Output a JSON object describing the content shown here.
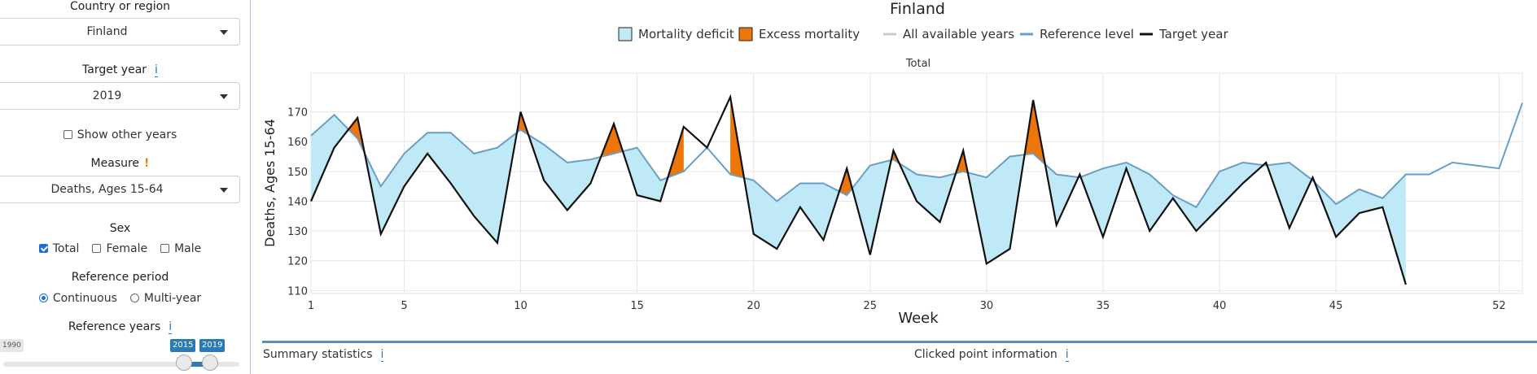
{
  "sidebar": {
    "country_label": "Country or region",
    "country_value": "Finland",
    "target_year_label": "Target year",
    "target_year_info": "i",
    "target_year_value": "2019",
    "show_other_years": "Show other years",
    "measure_label": "Measure",
    "measure_warn": "!",
    "measure_value": "Deaths, Ages 15-64",
    "sex_label": "Sex",
    "sex_options": [
      "Total",
      "Female",
      "Male"
    ],
    "ref_period_label": "Reference period",
    "ref_period_options": [
      "Continuous",
      "Multi-year"
    ],
    "ref_years_label": "Reference years",
    "ref_years_info": "i",
    "slider_min": "1990",
    "slider_from": "2015",
    "slider_to": "2019"
  },
  "panels": {
    "summary_label": "Summary statistics",
    "summary_info": "i",
    "clicked_label": "Clicked point information",
    "clicked_info": "i"
  },
  "colors": {
    "deficit": "#bfe9f7",
    "excess": "#ec7608",
    "reference": "#6a9ec7",
    "target": "#111111",
    "all_years": "#cccccc"
  },
  "chart_data": {
    "type": "line",
    "title": "Finland",
    "subtitle": "Total",
    "xlabel": "Week",
    "ylabel": "Deaths, Ages 15-64",
    "xlim": [
      1,
      53
    ],
    "ylim": [
      109,
      183
    ],
    "x_ticks": [
      1,
      5,
      10,
      15,
      20,
      25,
      30,
      35,
      40,
      45,
      52
    ],
    "y_ticks": [
      110,
      120,
      130,
      140,
      150,
      160,
      170
    ],
    "grid": true,
    "legend_position": "top",
    "legend": [
      "Mortality deficit",
      "Excess mortality",
      "All available years",
      "Reference level",
      "Target year"
    ],
    "series": [
      {
        "name": "Reference level",
        "x": [
          1,
          2,
          3,
          4,
          5,
          6,
          7,
          8,
          9,
          10,
          11,
          12,
          13,
          14,
          15,
          16,
          17,
          18,
          19,
          20,
          21,
          22,
          23,
          24,
          25,
          26,
          27,
          28,
          29,
          30,
          31,
          32,
          33,
          34,
          35,
          36,
          37,
          38,
          39,
          40,
          41,
          42,
          43,
          44,
          45,
          46,
          47,
          48,
          49,
          50,
          51,
          52,
          53
        ],
        "values": [
          162,
          169,
          161,
          145,
          156,
          163,
          163,
          156,
          158,
          164,
          159,
          153,
          154,
          156,
          158,
          147,
          150,
          158,
          149,
          147,
          140,
          146,
          146,
          142,
          152,
          154,
          149,
          148,
          150,
          148,
          155,
          156,
          149,
          148,
          151,
          153,
          149,
          142,
          138,
          150,
          153,
          152,
          153,
          147,
          139,
          144,
          141,
          149,
          149,
          153,
          152,
          151,
          173
        ]
      },
      {
        "name": "Target year",
        "x": [
          1,
          2,
          3,
          4,
          5,
          6,
          7,
          8,
          9,
          10,
          11,
          12,
          13,
          14,
          15,
          16,
          17,
          18,
          19,
          20,
          21,
          22,
          23,
          24,
          25,
          26,
          27,
          28,
          29,
          30,
          31,
          32,
          33,
          34,
          35,
          36,
          37,
          38,
          39,
          40,
          41,
          42,
          43,
          44,
          45,
          46,
          47,
          48
        ],
        "values": [
          140,
          158,
          168,
          129,
          145,
          156,
          146,
          135,
          126,
          170,
          147,
          137,
          146,
          166,
          142,
          140,
          165,
          158,
          175,
          129,
          124,
          138,
          127,
          151,
          122,
          157,
          140,
          133,
          157,
          119,
          124,
          174,
          132,
          149,
          128,
          151,
          130,
          141,
          130,
          138,
          146,
          153,
          131,
          148,
          128,
          136,
          138,
          112
        ]
      }
    ]
  }
}
